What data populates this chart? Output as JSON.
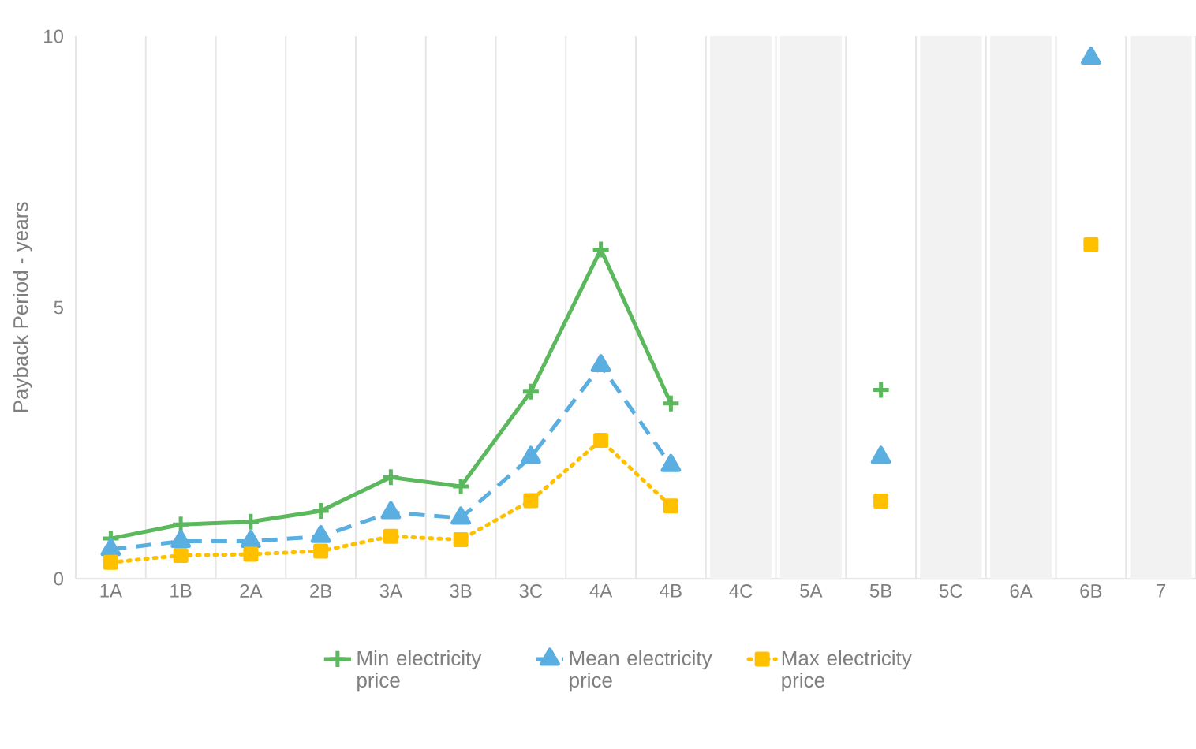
{
  "chart_data": {
    "type": "line",
    "ylabel": "Payback Period - years",
    "categories": [
      "1A",
      "1B",
      "2A",
      "2B",
      "3A",
      "3B",
      "3C",
      "4A",
      "4B",
      "4C",
      "5A",
      "5B",
      "5C",
      "6A",
      "6B",
      "7"
    ],
    "series": [
      {
        "name": "Min electricity price",
        "color": "#5cb85c",
        "marker": "cross",
        "line_style": "solid",
        "values": [
          0.74,
          1.0,
          1.05,
          1.25,
          1.87,
          1.7,
          3.45,
          6.07,
          3.23,
          null,
          null,
          3.48,
          null,
          null,
          null,
          null
        ]
      },
      {
        "name": "Mean electricity price",
        "color": "#5aaee0",
        "marker": "triangle",
        "line_style": "dashed",
        "values": [
          0.54,
          0.69,
          0.69,
          0.78,
          1.22,
          1.12,
          2.24,
          3.93,
          2.09,
          null,
          null,
          2.24,
          null,
          null,
          9.6,
          null
        ]
      },
      {
        "name": "Max electricity price",
        "color": "#ffc000",
        "marker": "square",
        "line_style": "dotted",
        "values": [
          0.3,
          0.43,
          0.45,
          0.51,
          0.78,
          0.72,
          1.44,
          2.55,
          1.34,
          null,
          null,
          1.43,
          null,
          null,
          6.16,
          null
        ]
      }
    ],
    "ylim": [
      0,
      10
    ],
    "yticks": [
      0,
      5,
      10
    ],
    "grid": "x",
    "legend": "bottom",
    "bands": [
      {
        "axis": "x",
        "from": "4C",
        "to": "4C",
        "color": "#f2f2f2"
      },
      {
        "axis": "x",
        "from": "5A",
        "to": "5A",
        "color": "#f2f2f2"
      },
      {
        "axis": "x",
        "from": "5C",
        "to": "5C",
        "color": "#f2f2f2"
      },
      {
        "axis": "x",
        "from": "6A",
        "to": "6A",
        "color": "#f2f2f2"
      },
      {
        "axis": "x",
        "from": "7",
        "to": "7",
        "color": "#f2f2f2"
      }
    ]
  }
}
